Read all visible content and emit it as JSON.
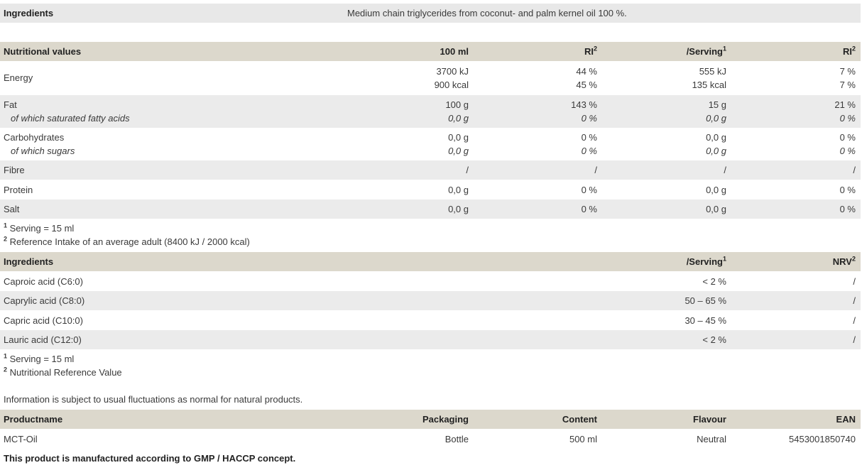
{
  "ingredients": {
    "label": "Ingredients",
    "text": "Medium chain triglycerides from coconut- and palm kernel oil 100 %."
  },
  "nutrition": {
    "headers": {
      "label": "Nutritional values",
      "per100": "100 ml",
      "ri": "RI",
      "ri_sup": "2",
      "serving": "/Serving",
      "serving_sup": "1",
      "ri2": "RI",
      "ri2_sup": "2"
    },
    "rows": [
      {
        "label": "Energy",
        "per100": [
          "3700 kJ",
          "900 kcal"
        ],
        "ri": [
          "44 %",
          "45 %"
        ],
        "serving": [
          "555 kJ",
          "135 kcal"
        ],
        "ri2": [
          "7 %",
          "7 %"
        ]
      },
      {
        "label": "Fat",
        "sub": "of which saturated fatty acids",
        "per100": [
          "100 g",
          "0,0 g"
        ],
        "ri": [
          "143 %",
          "0 %"
        ],
        "serving": [
          "15 g",
          "0,0 g"
        ],
        "ri2": [
          "21 %",
          "0 %"
        ]
      },
      {
        "label": "Carbohydrates",
        "sub": "of which sugars",
        "per100": [
          "0,0 g",
          "0,0 g"
        ],
        "ri": [
          "0 %",
          "0 %"
        ],
        "serving": [
          "0,0 g",
          "0,0 g"
        ],
        "ri2": [
          "0 %",
          "0 %"
        ]
      },
      {
        "label": "Fibre",
        "per100": "/",
        "ri": "/",
        "serving": "/",
        "ri2": "/"
      },
      {
        "label": "Protein",
        "per100": "0,0 g",
        "ri": "0 %",
        "serving": "0,0 g",
        "ri2": "0 %"
      },
      {
        "label": "Salt",
        "per100": "0,0 g",
        "ri": "0 %",
        "serving": "0,0 g",
        "ri2": "0 %"
      }
    ],
    "footnotes": [
      {
        "sup": "1",
        "text": "Serving = 15 ml"
      },
      {
        "sup": "2",
        "text": "Reference Intake of an average adult (8400 kJ / 2000 kcal)"
      }
    ]
  },
  "fatty_acids": {
    "headers": {
      "label": "Ingredients",
      "serving": "/Serving",
      "serving_sup": "1",
      "nrv": "NRV",
      "nrv_sup": "2"
    },
    "rows": [
      {
        "label": "Caproic acid (C6:0)",
        "serving": "< 2 %",
        "nrv": "/"
      },
      {
        "label": "Caprylic acid (C8:0)",
        "serving": "50 – 65 %",
        "nrv": "/"
      },
      {
        "label": "Capric acid (C10:0)",
        "serving": "30 – 45 %",
        "nrv": "/"
      },
      {
        "label": "Lauric acid (C12:0)",
        "serving": "< 2 %",
        "nrv": "/"
      }
    ],
    "footnotes": [
      {
        "sup": "1",
        "text": "Serving = 15 ml"
      },
      {
        "sup": "2",
        "text": "Nutritional Reference Value"
      }
    ]
  },
  "info": "Information is subject to usual fluctuations as normal for natural products.",
  "product": {
    "headers": {
      "name": "Productname",
      "packaging": "Packaging",
      "content": "Content",
      "flavour": "Flavour",
      "ean": "EAN"
    },
    "row": {
      "name": "MCT-Oil",
      "packaging": "Bottle",
      "content": "500 ml",
      "flavour": "Neutral",
      "ean": "5453001850740"
    }
  },
  "gmp": "This product is manufactured according to GMP / HACCP concept."
}
